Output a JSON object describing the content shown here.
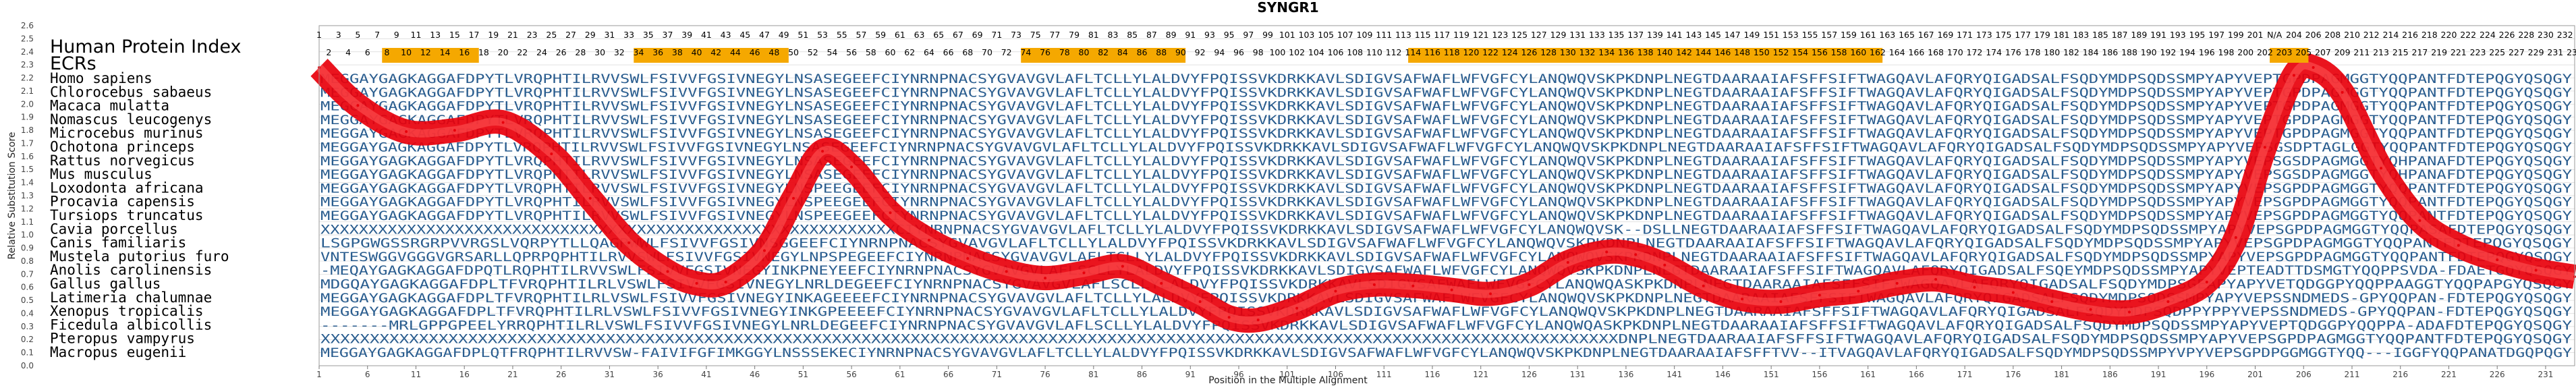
{
  "chart_data": {
    "type": "line",
    "title": "SYNGR1",
    "xlabel": "Position in the Multiple Alignment",
    "ylabel": "Relative Substitution Score",
    "xlim": [
      1,
      234
    ],
    "ylim": [
      0.0,
      2.6
    ],
    "y_ticks": [
      "0.0",
      "0.1",
      "0.2",
      "0.3",
      "0.4",
      "0.5",
      "0.6",
      "0.7",
      "0.8",
      "0.9",
      "1.0",
      "1.1",
      "1.2",
      "1.3",
      "1.4",
      "1.5",
      "1.6",
      "1.7",
      "1.8",
      "1.9",
      "2.0",
      "2.1",
      "2.2",
      "2.3",
      "2.4",
      "2.5",
      "2.6"
    ],
    "x_ticks": [
      "1",
      "6",
      "11",
      "16",
      "21",
      "26",
      "31",
      "36",
      "41",
      "46",
      "51",
      "56",
      "61",
      "66",
      "71",
      "76",
      "81",
      "86",
      "91",
      "96",
      "101",
      "106",
      "111",
      "116",
      "121",
      "126",
      "131",
      "136",
      "141",
      "146",
      "151",
      "156",
      "161",
      "166",
      "171",
      "176",
      "181",
      "186",
      "191",
      "196",
      "201",
      "206",
      "211",
      "216",
      "221",
      "226",
      "231"
    ],
    "header_label": "Human Protein Index",
    "ecr_label": "ECRs",
    "human_index_row": [
      "1",
      "3",
      "5",
      "7",
      "9",
      "11",
      "13",
      "15",
      "17",
      "19",
      "21",
      "23",
      "25",
      "27",
      "29",
      "31",
      "33",
      "35",
      "37",
      "39",
      "41",
      "43",
      "45",
      "47",
      "49",
      "51",
      "53",
      "55",
      "57",
      "59",
      "61",
      "63",
      "65",
      "67",
      "69",
      "71",
      "73",
      "75",
      "77",
      "79",
      "81",
      "83",
      "85",
      "87",
      "89",
      "91",
      "93",
      "95",
      "97",
      "99",
      "101",
      "103",
      "105",
      "107",
      "109",
      "111",
      "113",
      "115",
      "117",
      "119",
      "121",
      "123",
      "125",
      "127",
      "129",
      "131",
      "133",
      "135",
      "137",
      "139",
      "141",
      "143",
      "145",
      "147",
      "149",
      "151",
      "153",
      "155",
      "157",
      "159",
      "161",
      "163",
      "165",
      "167",
      "169",
      "171",
      "173",
      "175",
      "177",
      "179",
      "181",
      "183",
      "185",
      "187",
      "189",
      "191",
      "193",
      "195",
      "197",
      "199",
      "201",
      "N/A",
      "204",
      "206",
      "208",
      "210",
      "212",
      "214",
      "216",
      "218",
      "220",
      "222",
      "224",
      "226",
      "228",
      "230",
      "232"
    ],
    "ecr_row": [
      "2",
      "4",
      "6",
      "8",
      "10",
      "12",
      "14",
      "16",
      "18",
      "20",
      "22",
      "24",
      "26",
      "28",
      "30",
      "32",
      "34",
      "36",
      "38",
      "40",
      "42",
      "44",
      "46",
      "48",
      "50",
      "52",
      "54",
      "56",
      "58",
      "60",
      "62",
      "64",
      "66",
      "68",
      "70",
      "72",
      "74",
      "76",
      "78",
      "80",
      "82",
      "84",
      "86",
      "88",
      "90",
      "92",
      "94",
      "96",
      "98",
      "100",
      "102",
      "104",
      "106",
      "108",
      "110",
      "112",
      "114",
      "116",
      "118",
      "120",
      "122",
      "124",
      "126",
      "128",
      "130",
      "132",
      "134",
      "136",
      "138",
      "140",
      "142",
      "144",
      "146",
      "148",
      "150",
      "152",
      "154",
      "156",
      "158",
      "160",
      "162",
      "164",
      "166",
      "168",
      "170",
      "172",
      "174",
      "176",
      "178",
      "180",
      "182",
      "184",
      "186",
      "188",
      "190",
      "192",
      "194",
      "196",
      "198",
      "200",
      "202",
      "203",
      "205",
      "207",
      "209",
      "211",
      "213",
      "215",
      "217",
      "219",
      "221",
      "223",
      "225",
      "227",
      "229",
      "231",
      "233"
    ],
    "ecr_segments": [
      [
        8,
        17
      ],
      [
        34,
        49
      ],
      [
        74,
        90
      ],
      [
        114,
        162
      ],
      [
        203,
        206
      ]
    ],
    "species": [
      {
        "name": "Homo sapiens",
        "seq": "MEGGAYGAGKAGGAFDPYTLVRQPHTILRVVSWLFSIVVFGSIVNEGYLNSASEGEEFCIYNRNPNACSYGVAVGVLAFLTCLLYLALDVYFPQISSVKDRKKAVLSDIGVSAFWAFLWFVGFCYLANQWQVSKPKDNPLNEGTDAARAAIAFSFFSIFTWAGQAVLAFQRYQIGADSALFSQDYMDPSQDSSMPYAPYVEPTGPDPAGMGGTYQQPANTFDTEPQGYQSQGY"
      },
      {
        "name": "Chlorocebus sabaeus",
        "seq": "MEGGAYGAGKAGGAFDPYTLVRQPHTILRVVSWLFSIVVFGSIVNEGYLNSASEGEEFCIYNRNPNACSYGVAVGVLAFLTCLLYLALDVYFPQISSVKDRKKAVLSDIGVSAFWAFLWFVGFCYLANQWQVSKPKDNPLNEGTDAARAAIAFSFFSIFTWAGQAVLAFQRYQIGADSALFSQDYMDPSQDSSMPYAPYVEPTGPDPAGMGGTYQQPANTFDTEPQGYQSQGY"
      },
      {
        "name": "Macaca mulatta",
        "seq": "MEGGAYGAGKAGGAFDPYTLVRQPHTILRVVSWLFSIVVFGSIVNEGYLNSASEGEEFCIYNRNPNACSYGVAVGVLAFLTCLLYLALDVYFPQISSVKDRKKAVLSDIGVSAFWAFLWFVGFCYLANQWQVSKPKDNPLNEGTDAARAAIAFSFFSIFTWAGQAVLAFQRYQIGADSALFSQDYMDPSQDSSMPYAPYVEPTGPDPAGMGGTYQQPANTFDTEPQGYQSQGY"
      },
      {
        "name": "Nomascus leucogenys",
        "seq": "MEGGAYGAGKAGGAFDPYTLVRQPHTILRVVSWLFSIVVFGSIVNEGYLNSASEGEEFCIYNRNPNACSYGVAVGVLAFLTCLLYLALDVYFPQISSVKDRKKAVLSDIGVSAFWAFLWFVGFCYLANQWQVSKPKDNPLNEGTDAARAAIAFSFFSIFTWAGQAVLAFQRYQIGADSALFSQDYMDPSQDSSMPYAPYVEPTGPDPAGMGGTYQQPANTFDTEPQGYQSQGY"
      },
      {
        "name": "Microcebus murinus",
        "seq": "MEGGAYGAGKAGGAFDPYTLVRQPHTILRVVSWLFSIVVFGSIVNEGYLNSASEGEEFCIYNRNPNACSYGVAVGVLAFLTCLLYLALDVYFPQISSVKDRKKAVLSDIGVSAFWAFLWFVGFCYLANQWQVSKPKDNPLNEGTDAARAAIAFSFFSIFTWAGQAVLAFQRYQIGADSALFSQDYMDPSQDSSMPYAPYVEPTGPDPAGMGGTYQQPANTFDTEPQGYQSQGY"
      },
      {
        "name": "Ochotona princeps",
        "seq": "MEGGAYGAGKAGGAFDPYTLVRQPHTILRVVSWLFSIVVFGSIVNEGYLNSASEGEEFCIYNRNPNACSYGVAVGVLAFLTCLLYLALDVYFPQISSVKDRKKAVLSDIGVSAFWAFLWFVGFCYLANQWQVSKPKDNPLNEGTDAARAAIAFSFFSIFTWAGQAVLAFQRYQIGADSALFSQDYMDPSQDSSMPYAPYVEPSGSDPTAGLGGTYQQPANTFDTEPQGYQSQGY"
      },
      {
        "name": "Rattus norvegicus",
        "seq": "MEGGAYGAGKAGGAFDPYTLVRQPHTILRVVSWLFSIVVFGSIVNEGYLNSASEGEEFCIYNRNPNACSYGVAVGVLAFLTCLLYLALDVYFPQISSVKDRKKAVLSDIGVSAFWAFLWFVGFCYLANQWQVSKPKDNPLNEGTDAARAAIAFSFFSIFTWAGQAVLAFQRYQIGADSALFSQDYMDPSQDSSMPYAPYVEPSGSDPAGMGGTYQHPANAFDTEPQGYQSQGY"
      },
      {
        "name": "Mus musculus",
        "seq": "MEGGAYGAGKAGGAFDPYTLVRQPHTILRVVSWLFSIVVFGSIVNEGYLNSASEGEEFCIYNRNPNACSYGVAVGVLAFLTCLLYLALDVYFPQISSVKDRKKAVLSDIGVSAFWAFLWFVGFCYLANQWQVSKPKDNPLNEGTDAARAAIAFSFFSIFTWAGQAVLAFQRYQIGADSALFSQDYMDPSQDSSMPYAPYVEPSGSDPAGMGGTYQHPANAFDTEPQGYQSQGY"
      },
      {
        "name": "Loxodonta africana",
        "seq": "MEGGAYGAGKAGGAFDPYTLVRQPHTILRVVSWLFSIVVFGSIVNEGYLNSPEEGEEFCIYNRNPNACSYGVAVGVLAFLTCLLYLALDVYFPQISSVKDRKKAVLSDIGVSAFWAFLWFVGFCYLANQWQVSKPKDNPLNEGTDAARAAIAFSFFSIFTWAGQAVLAFQRYQIGADSALFSQDYMDPSQDSSMPYAPYVEPSGPDPAGMGGTYQQPANTFDTEPQGYQSQGY"
      },
      {
        "name": "Procavia capensis",
        "seq": "MEGGAYGAGKAGGAFDPYTLVRQPHTILRVVSWLFSIVVFGSIVNEGYLNSPEEGEEFCIYNRNPNACSYGVAVGVLAFLTCLLYLALDVYFPQISSVKDRKKAVLSDIGVSAFWAFLWFVGFCYLANQWQVSKPKDNPLNEGTDAARAAIAFSFFSIFTWAGQAVLAFQRYQIGADSALFSQDYMDPSQDSSMPYAPYVEPSGPDPAGMGGTYQQPANTFDTEPQGYQSQGY"
      },
      {
        "name": "Tursiops truncatus",
        "seq": "MEGGAYGAGKAGGAFDPYTLVRQPHTILRVVSWLFSIVVFGSIVNEGYLNSPEEGEEFCIYNRNPNACSYGVAVGVLAFLTCLLYLALDVYFPQISSVKDRKKAVLSDIGVSAFWAFLWFVGFCYLANQWQVSKPKDNPLNEGTDAARAAIAFSFFSIFTWAGQAVLAFQRYQIGADSALFSQDYMDPSQDSSMPYAPYVEPSGPDPAGMGGTYQQPANTFDTEPQGYQSQGY"
      },
      {
        "name": "Cavia porcellus",
        "seq": "XXXXXXXXXXXXXXXXXXXXXXXXXXXXXXXXXXXXXXXXXXXXXXXXXXXXXXXXXXXXCIYNRNPNACSYGVAVGVLAFLTCLLYLALDVYFPQISSVKDRKKAVLSDIGVSAFWAFLWFVGFCYLANQWQVSK--DSLLNEGTDAARAAIAFSFFSIFTWAGQAVLAFQRYQIGADSALFSQDYMDPSQDSSMPYAPYVEPSGPDPAGMGGTYQQPASAFDTEPQGYQSQGY"
      },
      {
        "name": "Canis familiaris",
        "seq": "LSGPGWGSSRGRPVVRGSLVQRPYTLLQAGRWWLFSIVVFGSIVNSGGEEFCIYNRNPNACSYGVAVGVLAFLTCLLYLALDVYFPQISSVKDRKKAVLSDIGVSAFWAFLWFVGFCYLANQWQVSKPKDNPLNEGTDAARAAIAFSFFSIFTWAGQAVLAFQRYQIGADSALFSQDYMDPSQDSSMPYAPYVEPSGPDPAGMGGTYQQPANTFDTEPQGYQSQGY"
      },
      {
        "name": "Mustela putorius furo",
        "seq": "VNTESWGGVGGGVGRSARLLQPRPQPHTILRVVSWLFSIVVFGSIVNEGYLNPSPEGEEFCIYNRNPNACSYGVAVGVLAFLTCLLYLALDVYFPQISSVKDRKKAVLSDIGVSAFWAFLWFVGFCYLANQWQVSKPKDNPLNEGTDAARAAIAFSFFSIFTWAGQAVLAFQRYQIGADSALFSQDYMDPSQDSSMPYAPYVEPSGPDPAGMGGTYQQPANTFDTEPQGYQSQGY"
      },
      {
        "name": "Anolis carolinensis",
        "seq": "-MEQAYGAGKAGGAFDPQTLRQPHTILRVVSWLFSIVVFGSIVNEGYINKPNEYEEFCIYNRNPNACSYGVAVGVLAFLSCLLYLALDVYFPQISSVKDRKKAVLSDIGVSAFWAFLWFVGFCYLANQWQVSKPKDNPLNEGTDAARAAIAFSFFSIFTWAGQAVLAFQRYQIGADSALFSQEYMDPSQDSSMPYAPYVEPTEADTTDSMGTYQQPPSVDA-FDAETGQYQSQGY"
      },
      {
        "name": "Gallus gallus",
        "seq": "MDGQAYGAGKAGGAFDPLTFVRQPHTILRLVSWLFSIVVFGSIVNEGYLNRLDEGEEFCIYNRNPNACSYGVAVGVLAFLSCLLYLALDVYFPQISSVKDRKKAVLSDIGVSAFWAFLWFVGFCYLANQWQASKPKDNPLNEGTDAARAAIAFSFFSIFTWAGQAVLAFQRYQIGADSALFSQDYMDPSGEAPYAPYVETQDGGPYQQPPAAGGTYQQPAPGYQSQGY"
      },
      {
        "name": "Latimeria chalumnae",
        "seq": "MEGGAYGAGKAGGAFDPLTFVRQPHTILRLVSWLFSIVVFGSIVNEGYINKAGEEEEFCIYNRNPNACSYGVAVGVLAFLTCLLYLALDVYFPQISSVKDRKKAVLSDIGVSAFWAFLWFVGFCYLANQWQVSKPKDNPLNEGTDAARAAIAFSFFSIFTWAGQAVLAFQRYQIGADSALFSQDYMDPSQDSSMPYAPYVEPSSNDMEDS-GPYQQPAN-FDTEPQGYQSQGY"
      },
      {
        "name": "Xenopus tropicalis",
        "seq": "MEGGAYGAGKAGGAFDPLTFVRQPHTILRLVSWLFSIVVFGSIVNEGYINKGPEEEEFCIYNRNPNACSYGVAVGVLAFLTCLLYLALDVYFPQISSVKDRKKAVLSDIGVSAFWAFLWFVGFCYLANQWQVSKPKDNPLNEGTDAARAAIAFSFFSIFTWAGQAVLAFQRYQIGADSALFSQDYMDPSQDPPYPPYVEPSSNDMEDS-GPYQQPAN-FDTEPQGYQSQGY"
      },
      {
        "name": "Ficedula albicollis",
        "seq": "-------MRLGPPGPEELYRRQPHTILRLVSWLFSIVVFGSIVNEGYLNRLDEGEEFCIYNRNPNACSYGVAVGVLAFLSCLLYLALDVYFPQISSVKDRKKAVLSDIGVSAFWAFLWFVGFCYLANQWQASKPKDNPLNEGTDAARAAIAFSFFSIFTWAGQAVLAFQRYQIGADSALFSQDYMDPSQDSSMPYAPYVEPTQDGGPYQQPPA-ADAFDTEPQGYQSQGY"
      },
      {
        "name": "Pteropus vampyrus",
        "seq": "XXXXXXXXXXXXXXXXXXXXXXXXXXXXXXXXXXXXXXXXXXXXXXXXXXXXXXXXXXXXXXXXXXXXXXXXXXXXXXXXXXXXXXXXXXXXXXXXXXXXXXXXXXXXXXXXXXXXXXXXXXXXXXXXXXXXDNPLNEGTDAARAAIAFSFFSIFTWAGQAVLAFQRYQIGADSALFSQDYMDPSQDSSMPYAPYVEPSGPDPAGMGGTYQQPANTFDTEPQGYQSQGY"
      },
      {
        "name": "Macropus eugenii",
        "seq": "MEGGAYGAGKAGGAFDPLQTFRQPHTILRVVSW-FAIVIFGFIMKGGYLNSSSEKECIYNRNPNACSYGVAVGVLAFLTCLLYLALDVYFPQISSVKDRKKAVLSDIGVSAFWAFLWFVGFCYLANQWQVSKPKDNPLNEGTDAARAAIAFSFFTVV--ITVAGQAVLAFQRYQIGADSALFSQDYMDPSQDSSMPYVPYVEPSGPDPGGMGGTYQQ---IGGFYQQPANATDGQPQGY"
      }
    ],
    "series": [
      {
        "x": [
          1,
          5,
          10,
          15,
          20,
          25,
          29,
          33,
          37,
          40,
          43,
          47,
          50,
          53,
          56,
          60,
          64,
          68,
          72,
          76,
          80,
          84,
          88,
          92,
          95,
          98,
          102,
          106,
          110,
          114,
          118,
          122,
          126,
          130,
          134,
          137,
          140,
          144,
          148,
          152,
          156,
          160,
          164,
          168,
          172,
          176,
          180,
          184,
          188,
          192,
          196,
          199,
          202,
          205,
          207,
          210,
          214,
          218,
          222,
          226,
          230,
          234
        ],
        "y": [
          2.28,
          1.99,
          1.79,
          1.8,
          1.86,
          1.62,
          1.28,
          0.94,
          0.72,
          0.63,
          0.64,
          0.88,
          1.28,
          1.64,
          1.52,
          1.17,
          0.96,
          0.82,
          0.72,
          0.67,
          0.71,
          0.76,
          0.63,
          0.49,
          0.37,
          0.35,
          0.44,
          0.57,
          0.62,
          0.61,
          0.58,
          0.55,
          0.62,
          0.79,
          0.87,
          0.85,
          0.77,
          0.61,
          0.51,
          0.49,
          0.54,
          0.57,
          0.63,
          0.66,
          0.6,
          0.56,
          0.49,
          0.43,
          0.41,
          0.49,
          0.64,
          0.98,
          1.67,
          2.22,
          2.28,
          2.09,
          1.51,
          1.11,
          0.92,
          0.81,
          0.73,
          0.68
        ]
      }
    ],
    "colors": {
      "line_outer": "#e8000b",
      "line_inner": "#ff5a5a",
      "ecr": "#f5a800",
      "sequence": "#2a5d8f",
      "grid": "#d8d8d8"
    }
  }
}
